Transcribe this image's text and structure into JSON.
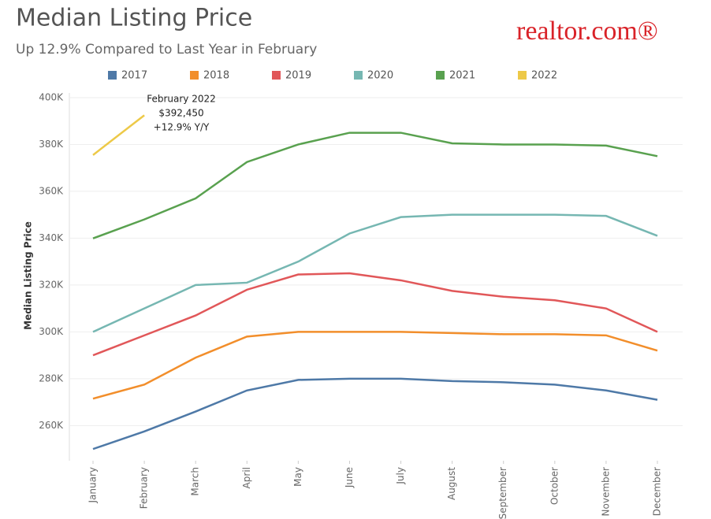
{
  "chart_data": {
    "type": "line",
    "title": "Median Listing Price",
    "subtitle": "Up 12.9% Compared to Last Year in February",
    "logo": "realtor.com®",
    "ylabel": "Median Listing Price",
    "categories": [
      "January",
      "February",
      "March",
      "April",
      "May",
      "June",
      "July",
      "August",
      "September",
      "October",
      "November",
      "December"
    ],
    "series": [
      {
        "name": "2017",
        "color": "#4e79a7",
        "values": [
          250000,
          257500,
          266000,
          275000,
          279500,
          280000,
          280000,
          279000,
          278500,
          277500,
          275000,
          271000
        ]
      },
      {
        "name": "2018",
        "color": "#f28e2b",
        "values": [
          271500,
          277500,
          289000,
          298000,
          300000,
          300000,
          300000,
          299500,
          299000,
          299000,
          298500,
          292000
        ]
      },
      {
        "name": "2019",
        "color": "#e15759",
        "values": [
          290000,
          298500,
          307000,
          318000,
          324500,
          325000,
          322000,
          317500,
          315000,
          313500,
          310000,
          300000
        ]
      },
      {
        "name": "2020",
        "color": "#76b7b2",
        "values": [
          300000,
          310000,
          320000,
          321000,
          330000,
          342000,
          349000,
          350000,
          350000,
          350000,
          349500,
          341000
        ]
      },
      {
        "name": "2021",
        "color": "#59a14f",
        "values": [
          339900,
          348000,
          357000,
          372500,
          380000,
          385000,
          385000,
          380500,
          380000,
          380000,
          379500,
          375000
        ]
      },
      {
        "name": "2022",
        "color": "#edc948",
        "values": [
          375500,
          392450,
          null,
          null,
          null,
          null,
          null,
          null,
          null,
          null,
          null,
          null
        ]
      }
    ],
    "annotation": [
      "February 2022",
      "$392,450",
      "+12.9% Y/Y"
    ],
    "ylim": [
      245000,
      402000
    ],
    "yticks": [
      {
        "value": 260000,
        "label": "260K"
      },
      {
        "value": 280000,
        "label": "280K"
      },
      {
        "value": 300000,
        "label": "300K"
      },
      {
        "value": 320000,
        "label": "320K"
      },
      {
        "value": 340000,
        "label": "340K"
      },
      {
        "value": 360000,
        "label": "360K"
      },
      {
        "value": 380000,
        "label": "380K"
      },
      {
        "value": 400000,
        "label": "400K"
      }
    ],
    "grid": true,
    "legend": "top"
  }
}
